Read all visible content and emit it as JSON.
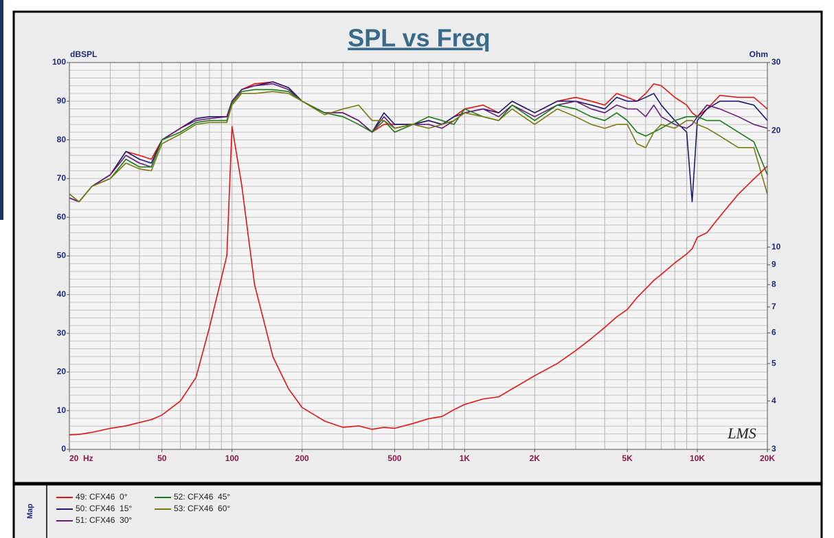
{
  "chart_data": {
    "type": "line",
    "title": "SPL vs Freq",
    "y_label": "dBSPL",
    "y2_label": "Ohm",
    "legend_title": "Map",
    "annotation": "LMS",
    "x_scale": "log",
    "y2_scale": "log",
    "grid": true,
    "xlim": [
      20,
      20000
    ],
    "xticks": [
      {
        "value": 20,
        "label": "20  Hz"
      },
      50,
      100,
      200,
      500,
      {
        "value": 1000,
        "label": "1K"
      },
      {
        "value": 2000,
        "label": "2K"
      },
      {
        "value": 5000,
        "label": "5K"
      },
      {
        "value": 10000,
        "label": "10K"
      },
      {
        "value": 20000,
        "label": "20K"
      }
    ],
    "xgrid": [
      20,
      30,
      40,
      50,
      60,
      70,
      80,
      90,
      100,
      200,
      300,
      400,
      500,
      600,
      700,
      800,
      900,
      1000,
      2000,
      3000,
      4000,
      5000,
      6000,
      7000,
      8000,
      9000,
      10000,
      20000
    ],
    "ylim": [
      0,
      100
    ],
    "yticks": [
      0,
      10,
      20,
      30,
      40,
      50,
      60,
      70,
      80,
      90,
      100
    ],
    "ygrid": [
      0,
      2,
      4,
      6,
      8,
      10,
      12,
      14,
      16,
      18,
      20,
      22,
      24,
      26,
      28,
      30,
      32,
      34,
      36,
      38,
      40,
      42,
      44,
      46,
      48,
      50,
      52,
      54,
      56,
      58,
      60,
      62,
      64,
      66,
      68,
      70,
      72,
      74,
      76,
      78,
      80,
      82,
      84,
      86,
      88,
      90,
      92,
      94,
      96,
      98,
      100
    ],
    "y2lim": [
      3,
      30
    ],
    "y2ticks": [
      3,
      4,
      5,
      6,
      7,
      8,
      9,
      10,
      20,
      30
    ],
    "x": [
      20,
      22,
      25,
      30,
      35,
      40,
      45,
      50,
      60,
      70,
      80,
      95,
      100,
      110,
      125,
      150,
      175,
      200,
      250,
      300,
      350,
      400,
      450,
      500,
      600,
      700,
      800,
      900,
      1000,
      1200,
      1400,
      1600,
      2000,
      2500,
      3000,
      3500,
      4000,
      4500,
      5000,
      5500,
      6000,
      6500,
      7000,
      8000,
      9000,
      9500,
      10000,
      11000,
      12500,
      15000,
      17500,
      20000
    ],
    "series": [
      {
        "name": "49: CFX46  0°",
        "color": "#e01414",
        "values": [
          65,
          64,
          68,
          71,
          77,
          76,
          75,
          80,
          83,
          85.5,
          86,
          86,
          90,
          93,
          94.5,
          95,
          93.5,
          90,
          87,
          87,
          85,
          82,
          84,
          84,
          84,
          85,
          84,
          86,
          88,
          89,
          87,
          90,
          87,
          90,
          91,
          90,
          89,
          92,
          91,
          90,
          92,
          94.5,
          94,
          91,
          89,
          87,
          86,
          88,
          91.5,
          91,
          91,
          88
        ]
      },
      {
        "name": "50: CFX46  15°",
        "color": "#1c1c6e",
        "values": [
          65,
          64,
          68,
          71,
          77,
          75,
          74,
          80,
          83,
          85.5,
          86,
          86,
          90,
          93,
          94,
          95,
          93.5,
          90,
          87,
          87,
          85,
          82,
          87,
          84,
          84,
          85,
          84,
          86,
          87,
          88,
          87,
          90,
          87,
          90,
          90,
          89,
          88,
          91,
          90,
          90,
          91,
          92,
          89,
          85,
          82,
          64,
          85,
          88,
          90,
          90,
          89,
          85
        ]
      },
      {
        "name": "51: CFX46  30°",
        "color": "#6a1a7a",
        "values": [
          65,
          64,
          68,
          71,
          76,
          74,
          73,
          80,
          83,
          85,
          85.5,
          86,
          90,
          93,
          94,
          94.5,
          93,
          90,
          87,
          87,
          85,
          82,
          86,
          83,
          84,
          84,
          83,
          85,
          87,
          88,
          86,
          89,
          86,
          89,
          90,
          88,
          87,
          89,
          88,
          88,
          86,
          89,
          86,
          84,
          83,
          84,
          86,
          89,
          88,
          86,
          84,
          83
        ]
      },
      {
        "name": "52: CFX46  45°",
        "color": "#1a7a1a",
        "values": [
          66,
          64,
          68,
          70,
          75,
          73,
          73,
          80,
          82,
          84.5,
          85,
          85,
          89.5,
          92.5,
          93,
          93,
          92.5,
          90,
          87,
          86,
          84,
          82,
          85,
          82,
          84,
          86,
          85,
          84,
          88,
          86,
          85,
          89,
          85,
          89,
          88,
          86,
          85,
          87,
          85,
          82,
          81,
          82,
          83,
          85,
          86,
          86,
          86,
          85,
          85,
          82,
          79.5,
          71
        ]
      },
      {
        "name": "53: CFX46  60°",
        "color": "#7a7a10",
        "values": [
          66,
          64,
          68,
          70,
          74,
          72.5,
          72,
          79,
          81.5,
          84,
          84.5,
          84.5,
          89,
          92,
          92,
          92.5,
          92,
          90,
          86.5,
          88,
          89,
          85,
          85,
          83,
          84,
          83,
          84,
          85,
          87,
          86,
          85,
          88,
          84,
          88,
          86,
          84,
          83,
          84,
          84,
          79,
          78,
          82,
          84,
          83,
          85,
          85,
          84,
          83,
          81,
          78,
          78,
          66
        ]
      },
      {
        "color": "#e01414",
        "axis": "y2",
        "values": [
          3.27,
          3.28,
          3.32,
          3.4,
          3.45,
          3.52,
          3.58,
          3.68,
          4.0,
          4.6,
          6.2,
          9.5,
          20.5,
          14.5,
          8.0,
          5.2,
          4.3,
          3.85,
          3.55,
          3.42,
          3.45,
          3.38,
          3.42,
          3.4,
          3.5,
          3.6,
          3.65,
          3.8,
          3.92,
          4.05,
          4.1,
          4.3,
          4.65,
          5.0,
          5.4,
          5.8,
          6.2,
          6.6,
          6.9,
          7.4,
          7.8,
          8.2,
          8.5,
          9.1,
          9.6,
          9.9,
          10.6,
          10.9,
          12.0,
          13.7,
          15.0,
          16.2
        ]
      }
    ]
  }
}
